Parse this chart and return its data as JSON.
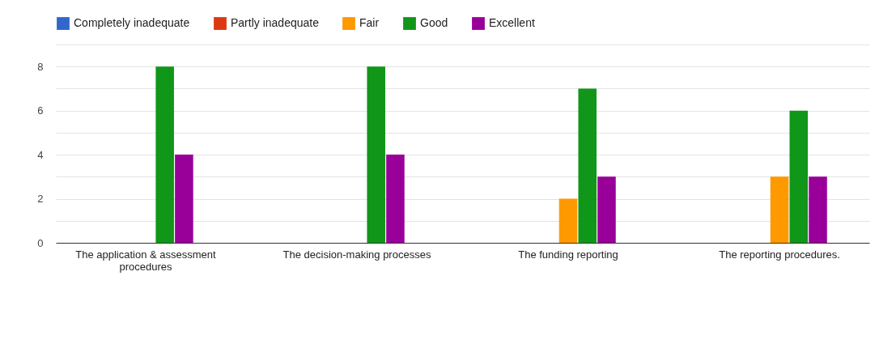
{
  "chart_data": {
    "type": "bar",
    "categories": [
      "The application & assessment procedures",
      "The decision-making processes",
      "The funding reporting",
      "The reporting procedures."
    ],
    "series": [
      {
        "name": "Completely inadequate",
        "color": "#3366cc",
        "values": [
          0,
          0,
          0,
          0
        ]
      },
      {
        "name": "Partly inadequate",
        "color": "#dc3912",
        "values": [
          0,
          0,
          0,
          0
        ]
      },
      {
        "name": "Fair",
        "color": "#ff9900",
        "values": [
          0,
          0,
          2,
          3
        ]
      },
      {
        "name": "Good",
        "color": "#109618",
        "values": [
          8,
          8,
          7,
          6
        ]
      },
      {
        "name": "Excellent",
        "color": "#990099",
        "values": [
          4,
          4,
          3,
          3
        ]
      }
    ],
    "ylim": [
      0,
      9
    ],
    "yticks": [
      0,
      {
        "value": 1,
        "label": null
      },
      2,
      {
        "value": 3,
        "label": null
      },
      4,
      {
        "value": 5,
        "label": null
      },
      6,
      {
        "value": 7,
        "label": null
      },
      8,
      {
        "value": 9,
        "label": null
      }
    ],
    "grid": true,
    "legend": "top"
  }
}
